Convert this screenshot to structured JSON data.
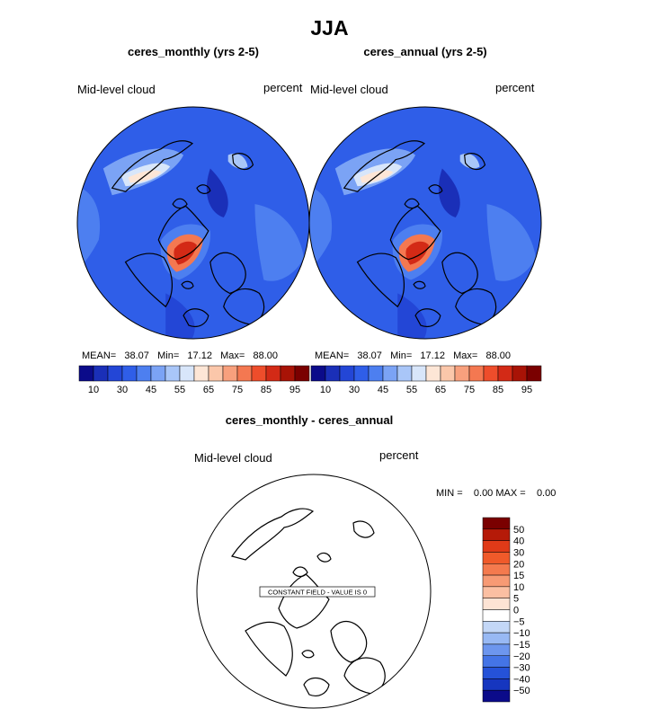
{
  "figure_title": "JJA",
  "chart_data": [
    {
      "type": "heatmap",
      "title": "ceres_monthly (yrs 2-5)",
      "variable_label": "Mid-level cloud",
      "units": "percent",
      "projection": "north polar stereographic",
      "stats": {
        "mean_label": "MEAN=",
        "mean": "38.07",
        "min_label": "Min=",
        "min": "17.12",
        "max_label": "Max=",
        "max": "88.00"
      },
      "colorbar": {
        "tick_labels": [
          "10",
          "30",
          "45",
          "55",
          "65",
          "75",
          "85",
          "95"
        ],
        "colors": [
          "#0b0b8a",
          "#1a2fb8",
          "#2346d6",
          "#2f5ee8",
          "#4d7ff0",
          "#7ba3f5",
          "#a9c6f8",
          "#d8e6fa",
          "#fde6d6",
          "#fbc7aa",
          "#f8a07d",
          "#f47851",
          "#ee4d2b",
          "#d32a16",
          "#a81306",
          "#7a0000"
        ]
      }
    },
    {
      "type": "heatmap",
      "title": "ceres_annual (yrs 2-5)",
      "variable_label": "Mid-level cloud",
      "units": "percent",
      "projection": "north polar stereographic",
      "stats": {
        "mean_label": "MEAN=",
        "mean": "38.07",
        "min_label": "Min=",
        "min": "17.12",
        "max_label": "Max=",
        "max": "88.00"
      },
      "colorbar": {
        "tick_labels": [
          "10",
          "30",
          "45",
          "55",
          "65",
          "75",
          "85",
          "95"
        ],
        "colors": [
          "#0b0b8a",
          "#1a2fb8",
          "#2346d6",
          "#2f5ee8",
          "#4d7ff0",
          "#7ba3f5",
          "#a9c6f8",
          "#d8e6fa",
          "#fde6d6",
          "#fbc7aa",
          "#f8a07d",
          "#f47851",
          "#ee4d2b",
          "#d32a16",
          "#a81306",
          "#7a0000"
        ]
      }
    },
    {
      "type": "heatmap",
      "title": "ceres_monthly - ceres_annual",
      "variable_label": "Mid-level cloud",
      "units": "percent",
      "projection": "north polar stereographic",
      "stats": {
        "min_label": "MIN =",
        "min": "0.00",
        "max_label": "MAX =",
        "max": "0.00"
      },
      "annotation": "CONSTANT FIELD - VALUE IS 0",
      "colorbar": {
        "tick_labels": [
          "50",
          "40",
          "30",
          "20",
          "15",
          "10",
          "5",
          "0",
          "−5",
          "−10",
          "−15",
          "−20",
          "−30",
          "−40",
          "−50"
        ],
        "colors": [
          "#7a0000",
          "#b51a08",
          "#e03a18",
          "#f05a2a",
          "#f47a4e",
          "#f79a74",
          "#fbbfa2",
          "#fde3d4",
          "#ffffff",
          "#c3d7f7",
          "#98b9f4",
          "#6d96ee",
          "#4474e6",
          "#2552d8",
          "#1636bf",
          "#0b0b8a"
        ]
      }
    }
  ]
}
